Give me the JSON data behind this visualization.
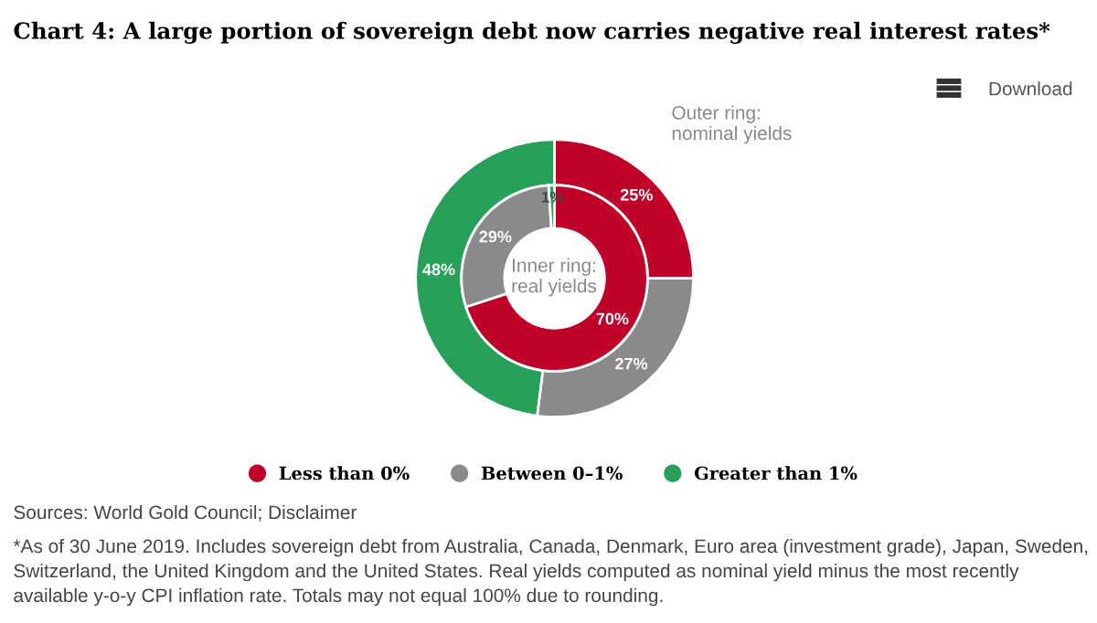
{
  "chart_data": {
    "type": "donut",
    "title": "Chart 4: A large portion of sovereign debt now carries negative real interest rates*",
    "categories": [
      "Less than 0%",
      "Between 0–1%",
      "Greater than 1%"
    ],
    "colors": [
      "#c0022b",
      "#8a8a8a",
      "#27a159"
    ],
    "series": [
      {
        "values": [
          25,
          27,
          48
        ],
        "value_labels": [
          "25%",
          "27%",
          "48%"
        ]
      },
      {
        "values": [
          70,
          29,
          1
        ],
        "value_labels": [
          "70%",
          "29%",
          "1%"
        ]
      }
    ],
    "legend": "bottom",
    "annotations": [
      "Outer ring:\nnominal yields",
      "Inner ring:\nreal yields",
      "Download",
      "Sources: World Gold Council; Disclaimer",
      "*As of 30 June 2019. Includes sovereign debt from Australia, Canada, Denmark, Euro area (investment grade), Japan, Sweden, Switzerland, the United Kingdom and the United States. Real yields computed as nominal yield minus the most recently available y-o-y CPI inflation rate. Totals may not equal 100% due to rounding."
    ]
  }
}
